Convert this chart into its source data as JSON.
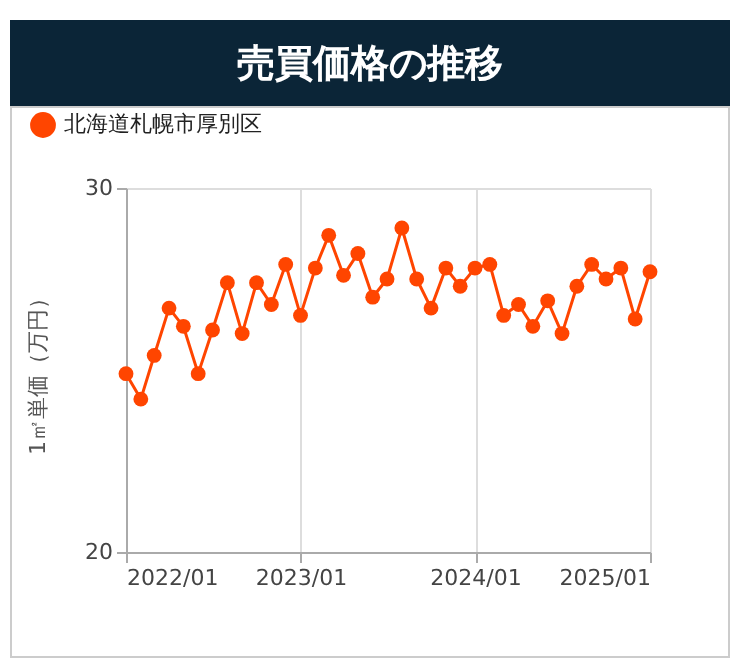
{
  "chart_data": {
    "type": "line",
    "title": "売買価格の推移",
    "ylabel": "1㎡単価（万円）",
    "x": [
      "2022-01",
      "2022-02",
      "2022-03",
      "2022-04",
      "2022-05",
      "2022-06",
      "2022-07",
      "2022-08",
      "2022-09",
      "2022-10",
      "2022-11",
      "2022-12",
      "2023-01",
      "2023-02",
      "2023-03",
      "2023-04",
      "2023-05",
      "2023-06",
      "2023-07",
      "2023-08",
      "2023-09",
      "2023-10",
      "2023-11",
      "2023-12",
      "2024-01",
      "2024-02",
      "2024-03",
      "2024-04",
      "2024-05",
      "2024-06",
      "2024-07",
      "2024-08",
      "2024-09",
      "2024-10",
      "2024-11",
      "2024-12",
      "2025-01"
    ],
    "series": [
      {
        "name": "北海道札幌市厚別区",
        "color": "#ff4500",
        "values": [
          24.9,
          24.2,
          25.4,
          26.7,
          26.2,
          24.9,
          26.1,
          27.4,
          26.0,
          27.4,
          26.8,
          27.9,
          26.5,
          27.8,
          28.7,
          27.6,
          28.2,
          27.0,
          27.5,
          28.9,
          27.5,
          26.7,
          27.8,
          27.3,
          27.8,
          27.9,
          26.5,
          26.8,
          26.2,
          26.9,
          26.0,
          27.3,
          27.9,
          27.5,
          27.8,
          26.4,
          27.7
        ]
      }
    ],
    "xlim": [
      "2022-01",
      "2025-01"
    ],
    "xticks": [
      {
        "value": "2022-01",
        "label": "2022/01"
      },
      {
        "value": "2023-01",
        "label": "2023/01"
      },
      {
        "value": "2024-01",
        "label": "2024/01"
      },
      {
        "value": "2025-01",
        "label": "2025/01"
      }
    ],
    "ylim": [
      20,
      30
    ],
    "yticks": [
      20,
      30
    ],
    "grid": true,
    "legend": "top left",
    "marker": "circle",
    "line_style": "solid"
  }
}
